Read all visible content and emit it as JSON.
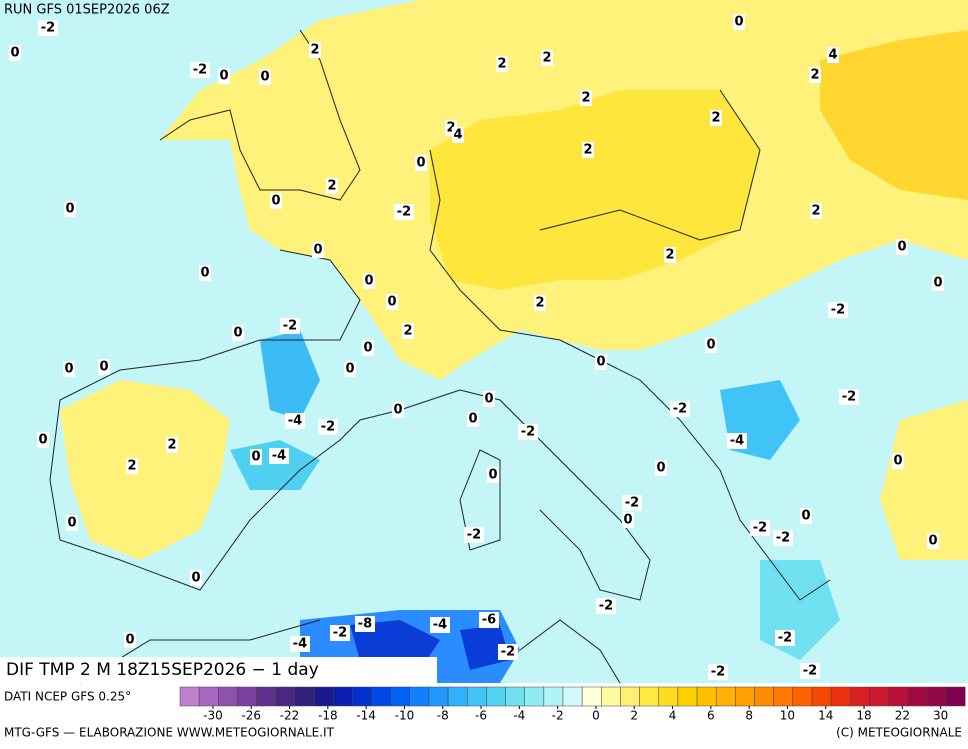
{
  "header": {
    "run": "RUN GFS 01SEP2026 06Z"
  },
  "map_title": "DIF TMP 2 M 18Z15SEP2026 − 1 day",
  "map_labels": [
    "-2",
    "0",
    "2",
    "-2",
    "0",
    "0",
    "2",
    "2",
    "0",
    "4",
    "2",
    "2",
    "2",
    "2",
    "4",
    "2",
    "0",
    "2",
    "0",
    "-2",
    "0",
    "2",
    "0",
    "2",
    "0",
    "0",
    "0",
    "0",
    "0",
    "2",
    "-2",
    "-2",
    "2",
    "0",
    "0",
    "0",
    "0",
    "0",
    "0",
    "0",
    "-2",
    "0",
    "0",
    "-2",
    "-4",
    "-2",
    "0",
    "-2",
    "0",
    "2",
    "-4",
    "0",
    "-4",
    "2",
    "0",
    "0",
    "0",
    "-2",
    "0",
    "0",
    "0",
    "-2",
    "-2",
    "-2",
    "0",
    "0",
    "-2",
    "-4",
    "-6",
    "-8",
    "-2",
    "-4",
    "-2",
    "0",
    "-2",
    "-2",
    "-2"
  ],
  "colorbar": {
    "ticks": [
      -30,
      -26,
      -22,
      -18,
      -14,
      -10,
      -8,
      -6,
      -4,
      -2,
      0,
      2,
      4,
      6,
      8,
      10,
      14,
      18,
      22,
      30
    ],
    "colors": [
      "#c080d0",
      "#a868c0",
      "#9050b0",
      "#7a40a0",
      "#603090",
      "#482880",
      "#302078",
      "#1a1a90",
      "#0a1eb0",
      "#0030d0",
      "#0048e8",
      "#0060f8",
      "#1080ff",
      "#2098ff",
      "#30b0ff",
      "#40c4f8",
      "#50d4f0",
      "#70e0f0",
      "#90ecf4",
      "#b0f4f8",
      "#d0fafc",
      "#ffffd8",
      "#fffaa0",
      "#fff070",
      "#ffe840",
      "#ffdc20",
      "#ffd000",
      "#ffc000",
      "#ffb000",
      "#ffa000",
      "#ff8c00",
      "#ff7800",
      "#ff6000",
      "#f84800",
      "#ec3010",
      "#dc2020",
      "#cc1830",
      "#b81038",
      "#a00840",
      "#900848",
      "#800050"
    ]
  },
  "footer": {
    "source": "DATI NCEP GFS 0.25°",
    "credit": "MTG-GFS — ELABORAZIONE WWW.METEOGIORNALE.IT",
    "copyright": "(C) METEOGIORNALE"
  }
}
